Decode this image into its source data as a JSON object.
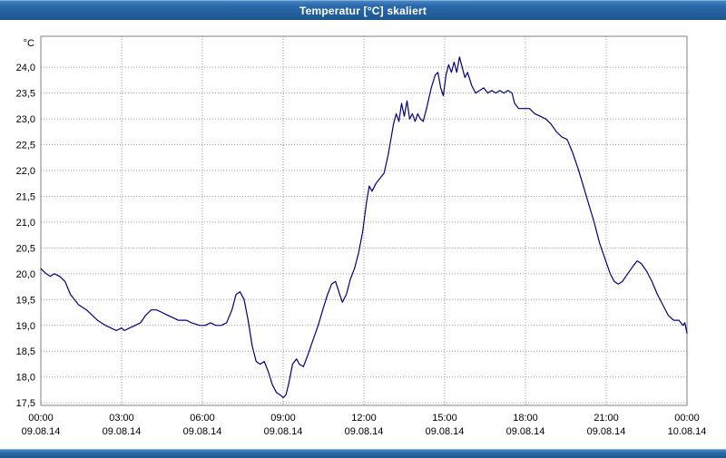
{
  "title_bar": {
    "title": "Temperatur [°C] skaliert"
  },
  "chart_data": {
    "type": "line",
    "title": "Temperatur [°C] skaliert",
    "unit_label": "°C",
    "xlabel": "",
    "ylabel": "°C",
    "line_color": "#000080",
    "grid_color": "#9a9a9a",
    "border_color": "#808080",
    "text_color": "#000000",
    "grid": "on",
    "legend": "none",
    "y_range": [
      17.45,
      24.6
    ],
    "x_range_hours": [
      0,
      24
    ],
    "y_ticks": [
      {
        "value": 24.0,
        "label": "24,0"
      },
      {
        "value": 23.5,
        "label": "23,5"
      },
      {
        "value": 23.0,
        "label": "23,0"
      },
      {
        "value": 22.5,
        "label": "22,5"
      },
      {
        "value": 22.0,
        "label": "22,0"
      },
      {
        "value": 21.5,
        "label": "21,5"
      },
      {
        "value": 21.0,
        "label": "21,0"
      },
      {
        "value": 20.5,
        "label": "20,5"
      },
      {
        "value": 20.0,
        "label": "20,0"
      },
      {
        "value": 19.5,
        "label": "19,5"
      },
      {
        "value": 19.0,
        "label": "19,0"
      },
      {
        "value": 18.5,
        "label": "18,5"
      },
      {
        "value": 18.0,
        "label": "18,0"
      },
      {
        "value": 17.5,
        "label": "17,5"
      }
    ],
    "x_ticks": [
      {
        "hour": 0,
        "time": "00:00",
        "date": "09.08.14"
      },
      {
        "hour": 3,
        "time": "03:00",
        "date": "09.08.14"
      },
      {
        "hour": 6,
        "time": "06:00",
        "date": "09.08.14"
      },
      {
        "hour": 9,
        "time": "09:00",
        "date": "09.08.14"
      },
      {
        "hour": 12,
        "time": "12:00",
        "date": "09.08.14"
      },
      {
        "hour": 15,
        "time": "15:00",
        "date": "09.08.14"
      },
      {
        "hour": 18,
        "time": "18:00",
        "date": "09.08.14"
      },
      {
        "hour": 21,
        "time": "21:00",
        "date": "09.08.14"
      },
      {
        "hour": 24,
        "time": "00:00",
        "date": "10.08.14"
      }
    ],
    "series": [
      {
        "name": "Temperatur",
        "points": [
          [
            0,
            20.1
          ],
          [
            0.2,
            20.0
          ],
          [
            0.35,
            19.95
          ],
          [
            0.5,
            20.0
          ],
          [
            0.7,
            19.95
          ],
          [
            0.9,
            19.85
          ],
          [
            1.1,
            19.6
          ],
          [
            1.4,
            19.4
          ],
          [
            1.7,
            19.3
          ],
          [
            1.9,
            19.2
          ],
          [
            2.1,
            19.1
          ],
          [
            2.4,
            19.0
          ],
          [
            2.6,
            18.95
          ],
          [
            2.8,
            18.9
          ],
          [
            3.0,
            18.95
          ],
          [
            3.1,
            18.9
          ],
          [
            3.3,
            18.95
          ],
          [
            3.5,
            19.0
          ],
          [
            3.7,
            19.05
          ],
          [
            3.9,
            19.2
          ],
          [
            4.1,
            19.3
          ],
          [
            4.3,
            19.3
          ],
          [
            4.5,
            19.25
          ],
          [
            4.7,
            19.2
          ],
          [
            4.9,
            19.15
          ],
          [
            5.1,
            19.1
          ],
          [
            5.4,
            19.1
          ],
          [
            5.6,
            19.05
          ],
          [
            5.9,
            19.0
          ],
          [
            6.1,
            19.0
          ],
          [
            6.3,
            19.05
          ],
          [
            6.5,
            19.0
          ],
          [
            6.7,
            19.0
          ],
          [
            6.9,
            19.05
          ],
          [
            7.1,
            19.3
          ],
          [
            7.25,
            19.6
          ],
          [
            7.4,
            19.65
          ],
          [
            7.55,
            19.5
          ],
          [
            7.7,
            19.1
          ],
          [
            7.85,
            18.6
          ],
          [
            8.0,
            18.3
          ],
          [
            8.15,
            18.25
          ],
          [
            8.3,
            18.3
          ],
          [
            8.45,
            18.1
          ],
          [
            8.6,
            17.85
          ],
          [
            8.75,
            17.7
          ],
          [
            8.9,
            17.65
          ],
          [
            9.0,
            17.6
          ],
          [
            9.1,
            17.65
          ],
          [
            9.2,
            17.85
          ],
          [
            9.35,
            18.25
          ],
          [
            9.5,
            18.35
          ],
          [
            9.6,
            18.25
          ],
          [
            9.75,
            18.2
          ],
          [
            9.9,
            18.4
          ],
          [
            10.1,
            18.7
          ],
          [
            10.3,
            19.0
          ],
          [
            10.5,
            19.35
          ],
          [
            10.65,
            19.6
          ],
          [
            10.8,
            19.8
          ],
          [
            10.95,
            19.85
          ],
          [
            11.1,
            19.6
          ],
          [
            11.2,
            19.45
          ],
          [
            11.35,
            19.6
          ],
          [
            11.5,
            19.9
          ],
          [
            11.65,
            20.1
          ],
          [
            11.8,
            20.4
          ],
          [
            11.95,
            20.8
          ],
          [
            12.1,
            21.4
          ],
          [
            12.2,
            21.7
          ],
          [
            12.3,
            21.6
          ],
          [
            12.45,
            21.75
          ],
          [
            12.6,
            21.85
          ],
          [
            12.75,
            21.95
          ],
          [
            12.9,
            22.3
          ],
          [
            13.0,
            22.6
          ],
          [
            13.1,
            22.9
          ],
          [
            13.2,
            23.1
          ],
          [
            13.3,
            22.95
          ],
          [
            13.4,
            23.3
          ],
          [
            13.5,
            23.05
          ],
          [
            13.6,
            23.35
          ],
          [
            13.7,
            23.0
          ],
          [
            13.8,
            23.1
          ],
          [
            13.9,
            22.95
          ],
          [
            14.0,
            23.1
          ],
          [
            14.1,
            23.0
          ],
          [
            14.2,
            22.95
          ],
          [
            14.35,
            23.25
          ],
          [
            14.5,
            23.6
          ],
          [
            14.65,
            23.85
          ],
          [
            14.75,
            23.9
          ],
          [
            14.85,
            23.6
          ],
          [
            14.95,
            23.45
          ],
          [
            15.05,
            23.85
          ],
          [
            15.15,
            24.05
          ],
          [
            15.25,
            23.9
          ],
          [
            15.35,
            24.1
          ],
          [
            15.45,
            23.9
          ],
          [
            15.55,
            24.2
          ],
          [
            15.65,
            24.0
          ],
          [
            15.75,
            23.8
          ],
          [
            15.85,
            23.9
          ],
          [
            16.0,
            23.65
          ],
          [
            16.15,
            23.5
          ],
          [
            16.3,
            23.55
          ],
          [
            16.45,
            23.6
          ],
          [
            16.6,
            23.5
          ],
          [
            16.75,
            23.55
          ],
          [
            16.9,
            23.5
          ],
          [
            17.05,
            23.55
          ],
          [
            17.2,
            23.5
          ],
          [
            17.35,
            23.55
          ],
          [
            17.5,
            23.5
          ],
          [
            17.6,
            23.3
          ],
          [
            17.75,
            23.2
          ],
          [
            17.95,
            23.2
          ],
          [
            18.15,
            23.2
          ],
          [
            18.35,
            23.1
          ],
          [
            18.55,
            23.05
          ],
          [
            18.75,
            23.0
          ],
          [
            18.95,
            22.9
          ],
          [
            19.15,
            22.75
          ],
          [
            19.35,
            22.65
          ],
          [
            19.55,
            22.6
          ],
          [
            19.75,
            22.35
          ],
          [
            19.95,
            22.05
          ],
          [
            20.15,
            21.7
          ],
          [
            20.35,
            21.35
          ],
          [
            20.55,
            21.0
          ],
          [
            20.75,
            20.6
          ],
          [
            20.95,
            20.3
          ],
          [
            21.15,
            20.0
          ],
          [
            21.3,
            19.85
          ],
          [
            21.45,
            19.8
          ],
          [
            21.6,
            19.85
          ],
          [
            21.8,
            20.0
          ],
          [
            22.0,
            20.15
          ],
          [
            22.15,
            20.25
          ],
          [
            22.3,
            20.2
          ],
          [
            22.5,
            20.05
          ],
          [
            22.7,
            19.85
          ],
          [
            22.9,
            19.6
          ],
          [
            23.1,
            19.4
          ],
          [
            23.3,
            19.2
          ],
          [
            23.5,
            19.1
          ],
          [
            23.7,
            19.1
          ],
          [
            23.85,
            19.0
          ],
          [
            23.92,
            19.05
          ],
          [
            24.0,
            18.85
          ]
        ]
      }
    ]
  }
}
